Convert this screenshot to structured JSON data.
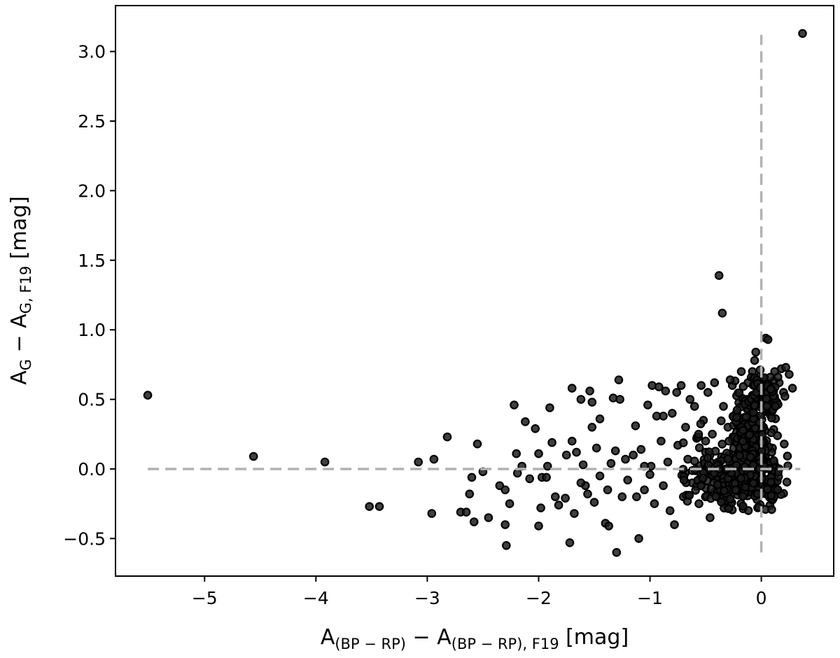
{
  "chart_data": {
    "type": "scatter",
    "title": "",
    "xlabel": {
      "base": "A",
      "sub1": "(BP − RP)",
      "mid": " − A",
      "sub2": "(BP − RP), F19",
      "unit": " [mag]"
    },
    "ylabel": {
      "base": "A",
      "sub1": "G",
      "mid": " − A",
      "sub2": "G, F19",
      "unit": " [mag]"
    },
    "xlim": [
      -5.8,
      0.65
    ],
    "ylim": [
      -0.77,
      3.33
    ],
    "xticks": [
      -5,
      -4,
      -3,
      -2,
      -1,
      0
    ],
    "xtick_labels": [
      "−5",
      "−4",
      "−3",
      "−2",
      "−1",
      "0"
    ],
    "yticks": [
      -0.5,
      0.0,
      0.5,
      1.0,
      1.5,
      2.0,
      2.5,
      3.0
    ],
    "ytick_labels": [
      "−0.5",
      "0.0",
      "0.5",
      "1.0",
      "1.5",
      "2.0",
      "2.5",
      "3.0"
    ],
    "reference_lines": {
      "horizontal": {
        "y": 0.0,
        "x_from": -5.51,
        "x_to": 0.35
      },
      "vertical": {
        "x": 0.0,
        "y_from": -0.6,
        "y_to": 3.12
      }
    },
    "grid": false,
    "colors": {
      "point_fill": "#1e1e1e",
      "point_edge": "#000000",
      "reference": "#b2b2b2"
    },
    "points": [
      [
        0.37,
        3.13
      ],
      [
        -5.51,
        0.53
      ],
      [
        -4.56,
        0.09
      ],
      [
        -3.92,
        0.05
      ],
      [
        -3.52,
        -0.27
      ],
      [
        -3.43,
        -0.27
      ],
      [
        -3.08,
        0.05
      ],
      [
        -2.96,
        -0.32
      ],
      [
        -2.94,
        0.07
      ],
      [
        -2.82,
        0.23
      ],
      [
        -2.7,
        -0.31
      ],
      [
        -2.65,
        -0.31
      ],
      [
        -2.6,
        -0.06
      ],
      [
        -2.58,
        -0.38
      ],
      [
        -2.55,
        0.18
      ],
      [
        -2.5,
        -0.02
      ],
      [
        -2.45,
        -0.35
      ],
      [
        -2.35,
        -0.12
      ],
      [
        -2.3,
        -0.15
      ],
      [
        -2.3,
        -0.4
      ],
      [
        -2.29,
        -0.55
      ],
      [
        -2.22,
        0.46
      ],
      [
        -2.2,
        0.11
      ],
      [
        -2.19,
        -0.03
      ],
      [
        -2.12,
        0.34
      ],
      [
        -2.03,
        0.29
      ],
      [
        -2.0,
        0.11
      ],
      [
        -1.97,
        -0.06
      ],
      [
        -2.0,
        -0.41
      ],
      [
        -1.98,
        -0.28
      ],
      [
        -1.93,
        -0.06
      ],
      [
        -1.9,
        0.44
      ],
      [
        -1.88,
        0.19
      ],
      [
        -1.85,
        -0.2
      ],
      [
        -1.82,
        -0.26
      ],
      [
        -1.75,
        0.1
      ],
      [
        -1.72,
        -0.53
      ],
      [
        -1.7,
        0.58
      ],
      [
        -1.7,
        0.2
      ],
      [
        -1.66,
        0.12
      ],
      [
        -1.62,
        0.5
      ],
      [
        -1.6,
        0.03
      ],
      [
        -1.58,
        -0.12
      ],
      [
        -1.56,
        -0.18
      ],
      [
        -1.54,
        0.56
      ],
      [
        -1.52,
        0.48
      ],
      [
        -1.52,
        0.3
      ],
      [
        -1.5,
        -0.24
      ],
      [
        -1.48,
        0.15
      ],
      [
        -1.45,
        -0.05
      ],
      [
        -1.4,
        -0.39
      ],
      [
        -1.38,
        -0.15
      ],
      [
        -1.37,
        -0.41
      ],
      [
        -1.33,
        0.51
      ],
      [
        -1.31,
        0.13
      ],
      [
        -1.3,
        -0.6
      ],
      [
        -1.28,
        0.64
      ],
      [
        -1.27,
        0.5
      ],
      [
        -1.25,
        -0.2
      ],
      [
        -1.22,
        0.07
      ],
      [
        -1.2,
        -0.08
      ],
      [
        -1.15,
        0.1
      ],
      [
        -1.12,
        -0.2
      ],
      [
        -1.1,
        -0.5
      ],
      [
        -1.08,
        0.14
      ],
      [
        -1.05,
        -0.15
      ],
      [
        -1.02,
        0.46
      ],
      [
        -1.0,
        -0.04
      ],
      [
        -0.98,
        0.6
      ],
      [
        -0.96,
        -0.25
      ],
      [
        -0.94,
        0.38
      ],
      [
        -0.92,
        0.59
      ],
      [
        -0.9,
        0.2
      ],
      [
        -0.88,
        -0.12
      ],
      [
        -0.86,
        0.56
      ],
      [
        -0.84,
        0.05
      ],
      [
        -0.82,
        -0.3
      ],
      [
        -0.8,
        0.4
      ],
      [
        -0.78,
        -0.4
      ],
      [
        -0.76,
        0.55
      ],
      [
        -0.75,
        0.17
      ],
      [
        -0.72,
        0.6
      ],
      [
        -0.7,
        -0.2
      ],
      [
        -0.68,
        0.3
      ],
      [
        -0.66,
        0.07
      ],
      [
        -0.64,
        0.5
      ],
      [
        -0.62,
        -0.1
      ],
      [
        -0.6,
        0.45
      ],
      [
        -0.58,
        0.22
      ],
      [
        -0.56,
        -0.25
      ],
      [
        -0.54,
        0.6
      ],
      [
        -0.52,
        0.35
      ],
      [
        -0.5,
        -0.02
      ],
      [
        -0.5,
        0.12
      ],
      [
        -0.48,
        0.55
      ],
      [
        -0.46,
        -0.35
      ],
      [
        -0.44,
        0.25
      ],
      [
        -0.42,
        0.62
      ],
      [
        -0.4,
        -0.15
      ],
      [
        -0.38,
        1.39
      ],
      [
        -0.35,
        1.12
      ],
      [
        -0.34,
        0.45
      ],
      [
        -0.32,
        0.0
      ],
      [
        -0.3,
        0.3
      ],
      [
        -0.28,
        -0.25
      ],
      [
        -0.26,
        0.6
      ],
      [
        -0.24,
        0.1
      ],
      [
        -0.22,
        0.4
      ],
      [
        -0.2,
        -0.1
      ],
      [
        -0.18,
        0.7
      ],
      [
        -0.16,
        0.2
      ],
      [
        -0.15,
        -0.05
      ],
      [
        -0.13,
        0.5
      ],
      [
        -0.12,
        0.62
      ],
      [
        -0.1,
        0.3
      ],
      [
        -0.08,
        0.7
      ],
      [
        -0.06,
        0.78
      ],
      [
        -0.05,
        0.84
      ],
      [
        -0.04,
        0.05
      ],
      [
        -0.02,
        0.45
      ],
      [
        0.0,
        0.65
      ],
      [
        0.02,
        0.3
      ],
      [
        0.04,
        0.94
      ],
      [
        0.06,
        0.93
      ],
      [
        0.08,
        0.6
      ],
      [
        0.1,
        0.15
      ],
      [
        0.12,
        0.7
      ],
      [
        0.14,
        0.48
      ],
      [
        0.16,
        0.62
      ],
      [
        0.18,
        0.72
      ],
      [
        0.2,
        0.55
      ],
      [
        0.22,
        0.73
      ],
      [
        0.25,
        0.68
      ],
      [
        0.28,
        0.58
      ],
      [
        -1.76,
        -0.21
      ],
      [
        -1.62,
        -0.1
      ],
      [
        -1.45,
        0.36
      ],
      [
        -2.08,
        -0.07
      ],
      [
        -2.15,
        0.02
      ],
      [
        -1.92,
        0.02
      ],
      [
        -1.68,
        -0.32
      ],
      [
        -1.35,
        0.04
      ],
      [
        -1.13,
        0.31
      ],
      [
        -0.99,
        0.02
      ],
      [
        -0.88,
        0.38
      ],
      [
        -1.05,
        0.02
      ],
      [
        -2.26,
        -0.25
      ],
      [
        -2.62,
        -0.18
      ]
    ],
    "dense_clusters": [
      {
        "x_center": -0.09,
        "y_center": 0.15,
        "x_spread": 0.17,
        "y_spread": 0.35,
        "count": 300
      },
      {
        "x_center": -0.18,
        "y_center": -0.08,
        "x_spread": 0.35,
        "y_spread": 0.14,
        "count": 200
      },
      {
        "x_center": 0.02,
        "y_center": 0.55,
        "x_spread": 0.12,
        "y_spread": 0.12,
        "count": 90
      },
      {
        "x_center": -0.45,
        "y_center": -0.02,
        "x_spread": 0.3,
        "y_spread": 0.22,
        "count": 70
      }
    ]
  }
}
